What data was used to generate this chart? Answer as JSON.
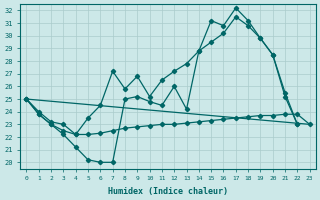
{
  "xlabel": "Humidex (Indice chaleur)",
  "bg_color": "#cce8e8",
  "grid_color": "#aacccc",
  "line_color": "#006666",
  "xlim": [
    -0.5,
    23.5
  ],
  "ylim": [
    19.5,
    32.5
  ],
  "yticks": [
    20,
    21,
    22,
    23,
    24,
    25,
    26,
    27,
    28,
    29,
    30,
    31,
    32
  ],
  "xticks": [
    0,
    1,
    2,
    3,
    4,
    5,
    6,
    7,
    8,
    9,
    10,
    11,
    12,
    13,
    14,
    15,
    16,
    17,
    18,
    19,
    20,
    21,
    22,
    23
  ],
  "series1_x": [
    0,
    1,
    2,
    3,
    4,
    5,
    6,
    7,
    8,
    9,
    10,
    11,
    12,
    13,
    14,
    15,
    16,
    17,
    18,
    19,
    20,
    21,
    22
  ],
  "series1_y": [
    25.0,
    23.8,
    23.0,
    22.2,
    21.2,
    20.2,
    20.0,
    20.0,
    25.0,
    25.2,
    24.8,
    24.5,
    26.0,
    24.2,
    28.8,
    31.2,
    30.8,
    32.2,
    31.2,
    29.8,
    28.5,
    25.2,
    23.0
  ],
  "series2_x": [
    0,
    23
  ],
  "series2_y": [
    25.0,
    23.0
  ],
  "series3_x": [
    0,
    1,
    2,
    3,
    4,
    5,
    6,
    7,
    8,
    9,
    10,
    11,
    12,
    13,
    14,
    15,
    16,
    17,
    18,
    19,
    20,
    21,
    22,
    23
  ],
  "series3_y": [
    25.0,
    23.8,
    23.0,
    22.5,
    22.2,
    22.2,
    22.3,
    22.5,
    22.7,
    22.8,
    22.9,
    23.0,
    23.0,
    23.1,
    23.2,
    23.3,
    23.4,
    23.5,
    23.6,
    23.7,
    23.7,
    23.8,
    23.8,
    23.0
  ],
  "series4_x": [
    0,
    1,
    2,
    3,
    4,
    5,
    6,
    7,
    8,
    9,
    10,
    11,
    12,
    13,
    14,
    15,
    16,
    17,
    18,
    19,
    20,
    21,
    22
  ],
  "series4_y": [
    25.0,
    24.0,
    23.2,
    23.0,
    22.2,
    23.5,
    24.5,
    27.2,
    25.8,
    26.8,
    25.2,
    26.5,
    27.2,
    27.8,
    28.8,
    29.5,
    30.2,
    31.5,
    30.8,
    29.8,
    28.5,
    25.5,
    23.0
  ]
}
